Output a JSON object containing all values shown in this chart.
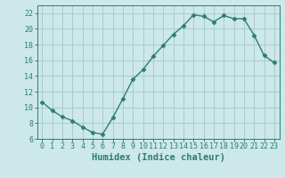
{
  "x": [
    0,
    1,
    2,
    3,
    4,
    5,
    6,
    7,
    8,
    9,
    10,
    11,
    12,
    13,
    14,
    15,
    16,
    17,
    18,
    19,
    20,
    21,
    22,
    23
  ],
  "y": [
    10.7,
    9.6,
    8.8,
    8.3,
    7.5,
    6.8,
    6.6,
    8.7,
    11.1,
    13.6,
    14.8,
    16.5,
    17.9,
    19.3,
    20.4,
    21.8,
    21.6,
    20.9,
    21.7,
    21.3,
    21.3,
    19.2,
    16.6,
    15.7
  ],
  "xlabel": "Humidex (Indice chaleur)",
  "ylim": [
    6,
    23
  ],
  "xlim": [
    -0.5,
    23.5
  ],
  "line_color": "#2e7d6e",
  "marker": "D",
  "marker_size": 2.5,
  "bg_color": "#cce8e8",
  "grid_color": "#aacccc",
  "tick_color": "#2e7d6e",
  "label_color": "#2e7d6e",
  "yticks": [
    6,
    8,
    10,
    12,
    14,
    16,
    18,
    20,
    22
  ],
  "xticks": [
    0,
    1,
    2,
    3,
    4,
    5,
    6,
    7,
    8,
    9,
    10,
    11,
    12,
    13,
    14,
    15,
    16,
    17,
    18,
    19,
    20,
    21,
    22,
    23
  ],
  "xlabel_fontsize": 7.5,
  "tick_fontsize": 6.0
}
